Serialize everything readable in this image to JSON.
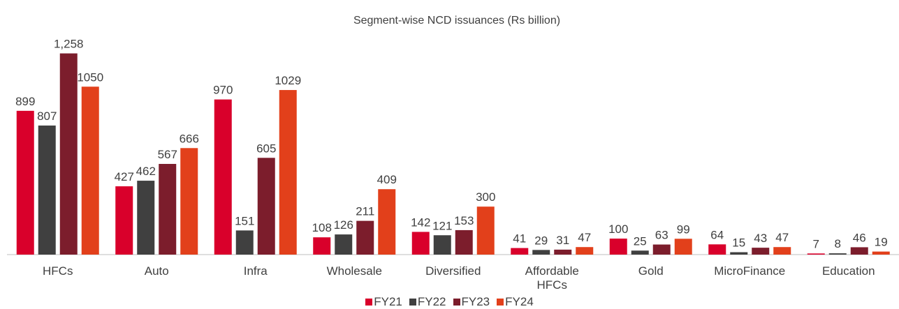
{
  "chart_data": {
    "type": "bar",
    "title": "Segment-wise NCD issuances (Rs billion)",
    "categories": [
      "HFCs",
      "Auto",
      "Infra",
      "Wholesale",
      "Diversified",
      "Affordable HFCs",
      "Gold",
      "MicroFinance",
      "Education"
    ],
    "series": [
      {
        "name": "FY21",
        "color": "#d9002b",
        "values": [
          899,
          427,
          970,
          108,
          142,
          41,
          100,
          64,
          7
        ]
      },
      {
        "name": "FY22",
        "color": "#404040",
        "values": [
          807,
          462,
          151,
          126,
          121,
          29,
          25,
          15,
          8
        ]
      },
      {
        "name": "FY23",
        "color": "#7c1d2c",
        "values": [
          1258,
          567,
          605,
          211,
          153,
          31,
          63,
          43,
          46
        ],
        "value_labels": [
          "1,258",
          "567",
          "605",
          "211",
          "153",
          "31",
          "63",
          "43",
          "46"
        ]
      },
      {
        "name": "FY24",
        "color": "#e2401b",
        "values": [
          1050,
          666,
          1029,
          409,
          300,
          47,
          99,
          47,
          19
        ]
      }
    ],
    "ylim": [
      0,
      1400
    ],
    "legend": "bottom"
  }
}
